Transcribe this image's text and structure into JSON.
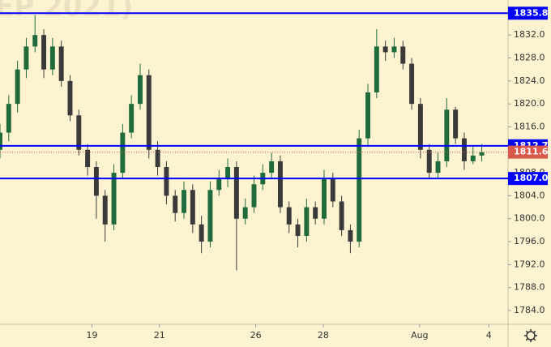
{
  "chart_data": {
    "type": "candlestick",
    "watermark": "EP 2021)",
    "x": [
      0,
      1,
      2,
      3,
      4,
      5,
      6,
      7,
      8,
      9,
      10,
      11,
      12,
      13,
      14,
      15,
      16,
      17,
      18,
      19,
      20,
      21,
      22,
      23,
      24,
      25,
      26,
      27,
      28,
      29,
      30,
      31,
      32,
      33,
      34,
      35,
      36,
      37,
      38,
      39,
      40,
      41,
      42,
      43,
      44,
      45,
      46,
      47,
      48,
      49,
      50,
      51,
      52,
      53,
      54,
      55
    ],
    "open": [
      1812,
      1815,
      1820,
      1826,
      1830,
      1832,
      1826,
      1830,
      1824,
      1818,
      1812,
      1809,
      1804,
      1799,
      1808,
      1815,
      1820,
      1825,
      1812,
      1809,
      1804,
      1801,
      1805,
      1799,
      1796,
      1805,
      1807,
      1809,
      1800,
      1802,
      1806,
      1808,
      1810,
      1802,
      1799,
      1797,
      1802,
      1800,
      1807,
      1803,
      1798,
      1796,
      1814,
      1822,
      1830,
      1829,
      1830,
      1827,
      1820,
      1812,
      1808,
      1810,
      1819,
      1814,
      1810,
      1811
    ],
    "high": [
      1816.5,
      1821.5,
      1827.5,
      1831.5,
      1835.5,
      1833,
      1831.5,
      1831,
      1825,
      1819,
      1813,
      1810,
      1805,
      1809.5,
      1816.5,
      1821.5,
      1827,
      1826,
      1813.5,
      1810,
      1805,
      1806.5,
      1806,
      1800.5,
      1806.5,
      1808.5,
      1810.5,
      1810,
      1803.5,
      1807.5,
      1809.5,
      1811.5,
      1811,
      1803,
      1800,
      1803.5,
      1803,
      1808.5,
      1808,
      1804,
      1799,
      1815.5,
      1823.5,
      1833,
      1831,
      1831.5,
      1831,
      1828,
      1821,
      1813,
      1811.5,
      1821,
      1819.5,
      1815,
      1812.5,
      1813
    ],
    "low": [
      1810.5,
      1813.5,
      1818.5,
      1824.5,
      1829,
      1824.5,
      1825,
      1823,
      1817,
      1811,
      1807.5,
      1800,
      1796,
      1798,
      1807,
      1814,
      1819,
      1810.5,
      1807.5,
      1802.5,
      1799.5,
      1800,
      1797.5,
      1794,
      1795,
      1804,
      1805.5,
      1791,
      1799,
      1801,
      1805,
      1807,
      1801,
      1797.5,
      1795,
      1796,
      1799,
      1799,
      1802,
      1797,
      1794,
      1795,
      1812.5,
      1821,
      1827.5,
      1828,
      1826,
      1819,
      1810.5,
      1807,
      1807,
      1809,
      1813,
      1808.5,
      1809.5,
      1810
    ],
    "close": [
      1815,
      1820,
      1826,
      1830,
      1832,
      1826,
      1830,
      1824,
      1818,
      1812,
      1809,
      1804,
      1799,
      1808,
      1815,
      1820,
      1825,
      1812,
      1809,
      1804,
      1801,
      1805,
      1799,
      1796,
      1805,
      1807,
      1809,
      1800,
      1802,
      1806,
      1808,
      1810,
      1802,
      1799,
      1797,
      1802,
      1800,
      1807,
      1803,
      1798,
      1796,
      1814,
      1822,
      1830,
      1829,
      1830,
      1827,
      1820,
      1812,
      1808,
      1810,
      1819,
      1814,
      1810,
      1811,
      1811.6
    ],
    "up_color": "#1f6b3c",
    "down_color": "#3a3a3a",
    "xlim": [
      0,
      58
    ],
    "xticks": [
      {
        "value": 10.5,
        "label": "19"
      },
      {
        "value": 18.2,
        "label": "21"
      },
      {
        "value": 29.2,
        "label": "26"
      },
      {
        "value": 36.9,
        "label": "28"
      },
      {
        "value": 47.9,
        "label": "Aug"
      },
      {
        "value": 55.8,
        "label": "4"
      }
    ],
    "ylim": [
      1781.6,
      1838.1
    ],
    "yticks": [
      {
        "value": 1784,
        "label": "1784.0"
      },
      {
        "value": 1788,
        "label": "1788.0"
      },
      {
        "value": 1792,
        "label": "1792.0"
      },
      {
        "value": 1796,
        "label": "1796.0"
      },
      {
        "value": 1800,
        "label": "1800.0"
      },
      {
        "value": 1804,
        "label": "1804.0"
      },
      {
        "value": 1808,
        "label": "1808.0"
      },
      {
        "value": 1812,
        "label": "1812.0"
      },
      {
        "value": 1816,
        "label": "1816.0"
      },
      {
        "value": 1820,
        "label": "1820.0"
      },
      {
        "value": 1824,
        "label": "1824.0"
      },
      {
        "value": 1828,
        "label": "1828.0"
      },
      {
        "value": 1832,
        "label": "1832.0"
      }
    ],
    "levels": [
      {
        "value": 1835.8,
        "color": "#0000ff"
      },
      {
        "value": 1812.7,
        "color": "#0000ff"
      },
      {
        "value": 1807,
        "label": "1807.0",
        "color": "#0000ff"
      }
    ],
    "last_price_color": "#d9574b"
  }
}
